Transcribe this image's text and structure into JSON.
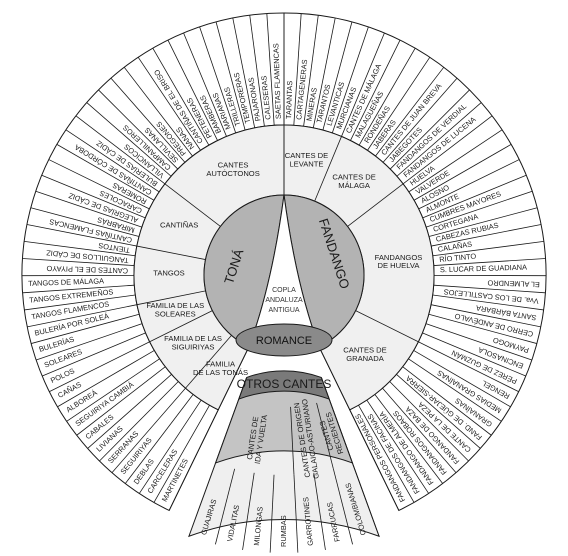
{
  "center": {
    "lines": [
      "COPLA",
      "ANDALUZA",
      "ANTIGUA"
    ]
  },
  "main": {
    "tona": "TONÁ",
    "fandango": "FANDANGO",
    "romance": "ROMANCE",
    "otros": "OTROS CANTES"
  },
  "colors": {
    "line": "#1a1a1a",
    "mid_ring": "#f0f0f0",
    "center_lens": "#ffffff",
    "tona_fill": "#b3b3b3",
    "fandango_fill": "#b3b3b3",
    "romance_fill": "#8a8a8a",
    "otros_dark": "#7a7a7a",
    "otros_mid": "#c4c4c4",
    "otros_light": "#efefef"
  },
  "groups": {
    "left": [
      {
        "lines": [
          "CANTES",
          "AUTÓCTONOS"
        ],
        "items": [
          "SAETAS FLAMENCAS",
          "CALESERAS",
          "PAJARONAS",
          "TEMPORERAS",
          "TRILLERAS",
          "MARIANAS",
          "BAMBERAS",
          "PETENERAS",
          "CANTIÑAS DE EL BRISO",
          "NANAS",
          "PREGONES",
          "SEVILLANAS",
          "CAMPANILLEROS",
          "VILLANCICOS"
        ]
      },
      {
        "lines": [
          "CANTIÑAS"
        ],
        "items": [
          "BULERÍAS DE CÁDIZ",
          "CANTIÑAS DE CÓRDOBA",
          "ROMERAS",
          "CARACOLES",
          "ALEGRÍAS DE CÁDIZ",
          "MIRABRÁS",
          "CANTIÑAS FLAMENCAS"
        ]
      },
      {
        "lines": [
          "TANGOS"
        ],
        "items": [
          "TIENTOS",
          "TANGUILLOS DE CÁDIZ",
          "CANTES DE EL PIYAYO",
          "TANGOS DE MÁLAGA",
          "TANGOS EXTREMEÑOS",
          "TANGOS FLAMENCOS"
        ]
      },
      {
        "lines": [
          "FAMILIA DE LAS",
          "SOLEARES"
        ],
        "items": [
          "BULERÍA POR SOLEÁ",
          "BULERÍAS",
          "SOLEARES",
          "POLOS"
        ]
      },
      {
        "lines": [
          "FAMILIA DE LAS",
          "SIGUIRIYAS"
        ],
        "items": [
          "CAÑAS",
          "ALBOREÁ",
          "SEGUIRIYA CAMBIÁ",
          "CABALES",
          "LIVIANAS",
          "SERRANAS"
        ]
      },
      {
        "lines": [
          "FAMILIA",
          "DE LAS TONÁS"
        ],
        "items": [
          "SEGUIRIYAS",
          "DEBLAS",
          "CARCELERAS",
          "MARTINETES"
        ]
      }
    ],
    "right": [
      {
        "lines": [
          "CANTES DE",
          "LEVANTE"
        ],
        "items": [
          "TARANTAS",
          "CARTAGENERAS",
          "MINERAS",
          "TARANTOS",
          "LEVANTICAS",
          "MURCIANAS"
        ]
      },
      {
        "lines": [
          "CANTES DE",
          "MÁLAGA"
        ],
        "items": [
          "CANTES DE MÁLAGA",
          "MALAGUEÑAS",
          "RONDEÑAS",
          "JABERAS",
          "CANTES DE JUAN BREVA",
          "JABEGOTES",
          "FANDANGOS DE VERDIAL",
          "FANDANGOS DE LUCENA"
        ]
      },
      {
        "lines": [
          "FANDANGOS",
          "DE HUELVA"
        ],
        "items": [
          "HUELVA",
          "VALVERDE",
          "ALOSNO",
          "ALMONTE",
          "CUMBRES MAYORES",
          "CORTEGANA",
          "CABEZAS RUBIAS",
          "CALAÑAS",
          "RÍO TINTO",
          "S. LUCAR DE GUADIANA",
          "EL ALMENDRO",
          "Vva. DE LOS CASTILLEJOS",
          "SANTA BÁRBARA",
          "CERRO DE ANDÉVALO",
          "PAYMOGO",
          "ENCINASOLA",
          "PÉREZ DE GUZMÁN"
        ]
      },
      {
        "lines": [
          "CANTES DE",
          "GRANADA"
        ],
        "items": [
          "RENGEL",
          "MEDIAS GRANAÍNAS",
          "GRANAÍNAS",
          "FAND. DE GÜEJAR-SIERRA",
          "CANTE DE LA PEZA",
          "FANDANGO DE BAZA",
          "FANDANGOS ROBAOS",
          "FANDANGO DE ALMERÍA",
          "FANDANGOS DE FACINAS",
          "FANDANGOS PERSONALES"
        ]
      }
    ],
    "bottom": [
      {
        "lines": [
          "CANTES DE",
          "IDA Y VUELTA"
        ],
        "items": [
          "GUAJIRAS",
          "VIDALITAS",
          "MILONGAS",
          "RUMBAS"
        ]
      },
      {
        "lines": [
          "CANTES DE ORIGEN",
          "GALAICO-ASTURIANO"
        ],
        "items": [
          "GARROTINES",
          "FARRUCAS"
        ]
      },
      {
        "lines": [
          "CANTES",
          "RECIENTES"
        ],
        "items": [
          "COLOMBIANAS"
        ]
      }
    ]
  }
}
